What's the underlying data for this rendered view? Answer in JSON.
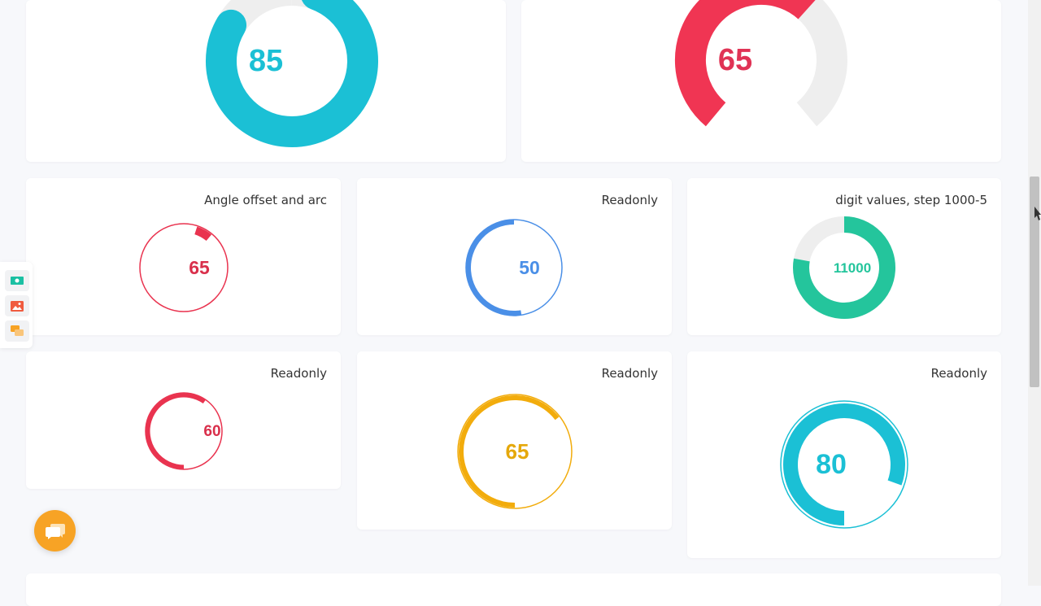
{
  "knobs": {
    "top_left": {
      "value": "85",
      "value_num": 85,
      "min": 0,
      "max": 100,
      "color": "#1bc0d5",
      "track": "#eeeeee"
    },
    "top_right": {
      "value": "65",
      "value_num": 65,
      "min": 0,
      "max": 100,
      "color": "#f03553",
      "track": "#eeeeee"
    },
    "angle_offset": {
      "title": "Angle offset and arc",
      "value": "65",
      "value_num": 65,
      "min": 0,
      "max": 100,
      "color": "#e9334f"
    },
    "readonly_1": {
      "title": "Readonly",
      "value": "50",
      "value_num": 50,
      "min": 0,
      "max": 100,
      "color": "#4a8fe7"
    },
    "digit_values": {
      "title": "digit values, step 1000-5",
      "value": "11000",
      "value_num": 11000,
      "min": 0,
      "max": 13000,
      "color": "#24c59c",
      "track": "#eeeeee"
    },
    "readonly_2": {
      "title": "Readonly",
      "value": "60",
      "value_num": 60,
      "min": 0,
      "max": 100,
      "color": "#e9334f"
    },
    "readonly_3": {
      "title": "Readonly",
      "value": "65",
      "value_num": 65,
      "min": 0,
      "max": 100,
      "color": "#f2ac0c"
    },
    "readonly_4": {
      "title": "Readonly",
      "value": "80",
      "value_num": 80,
      "min": 0,
      "max": 100,
      "color": "#1bc0d5"
    }
  },
  "toolbar": {
    "icons": [
      "money-icon",
      "image-icon",
      "chat-icon"
    ],
    "colors": [
      "#1bc0a3",
      "#f05b3f",
      "#f7a325"
    ]
  },
  "chat_fab": {
    "icon": "chat-bubbles-icon",
    "color": "#f7a325"
  }
}
